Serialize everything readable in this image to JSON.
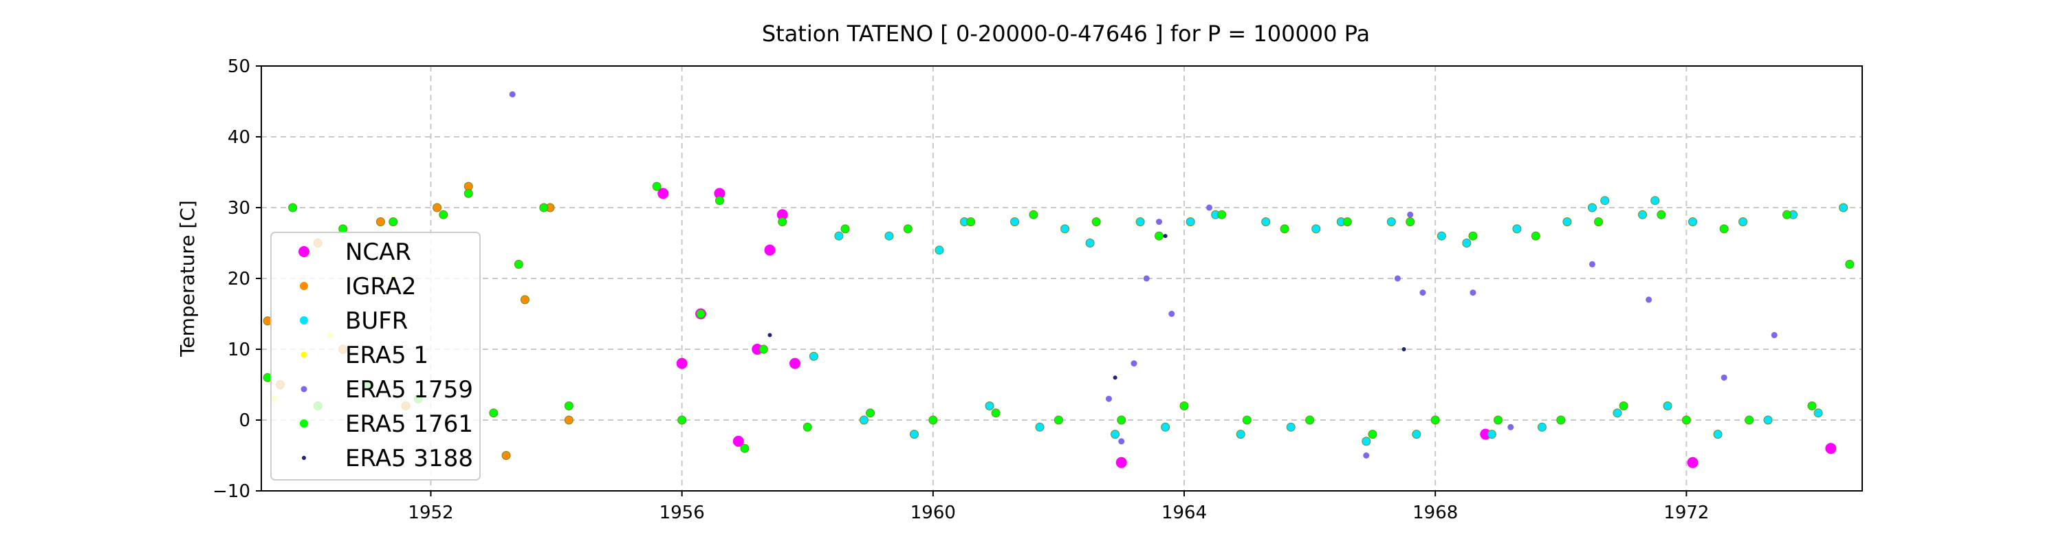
{
  "chart_data": {
    "type": "scatter",
    "title": "Station  TATENO [ 0-20000-0-47646 ]  for P = 100000 Pa",
    "xlabel": "",
    "ylabel": "Temperature [C]",
    "xlim": [
      1949.3,
      1974.8
    ],
    "ylim": [
      -10,
      50
    ],
    "x_ticks": [
      1952,
      1956,
      1960,
      1964,
      1968,
      1972
    ],
    "x_tick_labels": [
      "1952",
      "1956",
      "1960",
      "1964",
      "1968",
      "1972"
    ],
    "y_ticks": [
      -10,
      0,
      10,
      20,
      30,
      40,
      50
    ],
    "y_tick_labels": [
      "−10",
      "0",
      "10",
      "20",
      "30",
      "40",
      "50"
    ],
    "grid": true,
    "legend_position": "center-left",
    "series": [
      {
        "name": "NCAR",
        "color": "#ff00ff",
        "marker_size": "large",
        "x": [
          1955.7,
          1956.0,
          1956.3,
          1956.6,
          1956.9,
          1957.2,
          1957.4,
          1957.6,
          1957.8,
          1963.0,
          1968.8,
          1972.1,
          1974.3
        ],
        "y": [
          32,
          8,
          15,
          32,
          -3,
          10,
          24,
          29,
          8,
          -6,
          -2,
          -6,
          -4
        ]
      },
      {
        "name": "IGRA2",
        "color": "#ff8c00",
        "marker_size": "medium",
        "x": [
          1949.4,
          1949.6,
          1950.2,
          1950.6,
          1951.2,
          1951.6,
          1952.1,
          1952.6,
          1953.2,
          1953.5,
          1953.9,
          1954.2
        ],
        "y": [
          14,
          5,
          25,
          10,
          28,
          2,
          30,
          33,
          -5,
          17,
          30,
          0
        ]
      },
      {
        "name": "BUFR",
        "color": "#00e5ff",
        "marker_size": "medium",
        "x": [
          1958.1,
          1958.5,
          1958.9,
          1959.3,
          1959.7,
          1960.1,
          1960.5,
          1960.9,
          1961.3,
          1961.7,
          1962.1,
          1962.5,
          1962.9,
          1963.3,
          1963.7,
          1964.1,
          1964.5,
          1964.9,
          1965.3,
          1965.7,
          1966.1,
          1966.5,
          1966.9,
          1967.3,
          1967.7,
          1968.1,
          1968.5,
          1968.9,
          1969.3,
          1969.7,
          1970.1,
          1970.5,
          1970.7,
          1970.9,
          1971.3,
          1971.5,
          1971.7,
          1972.1,
          1972.5,
          1972.9,
          1973.3,
          1973.7,
          1974.1,
          1974.5
        ],
        "y": [
          9,
          26,
          0,
          26,
          -2,
          24,
          28,
          2,
          28,
          -1,
          27,
          25,
          -2,
          28,
          -1,
          28,
          29,
          -2,
          28,
          -1,
          27,
          28,
          -3,
          28,
          -2,
          26,
          25,
          -2,
          27,
          -1,
          28,
          30,
          31,
          1,
          29,
          31,
          2,
          28,
          -2,
          28,
          0,
          29,
          1,
          30
        ]
      },
      {
        "name": "ERA5 1",
        "color": "#ffff00",
        "marker_size": "small",
        "x": [
          1949.5,
          1950.4,
          1951.4
        ],
        "y": [
          3,
          12,
          20
        ]
      },
      {
        "name": "ERA5 1759",
        "color": "#7b68ee",
        "marker_size": "small",
        "x": [
          1953.3,
          1962.8,
          1963.0,
          1963.2,
          1963.4,
          1963.6,
          1963.8,
          1964.4,
          1966.9,
          1967.4,
          1967.6,
          1967.8,
          1968.6,
          1969.2,
          1970.5,
          1971.4,
          1972.6,
          1973.4
        ],
        "y": [
          46,
          3,
          -3,
          8,
          20,
          28,
          15,
          30,
          -5,
          20,
          29,
          18,
          18,
          -1,
          22,
          17,
          6,
          12
        ]
      },
      {
        "name": "ERA5 1761",
        "color": "#00ff00",
        "marker_size": "medium",
        "x": [
          1949.4,
          1949.8,
          1950.2,
          1950.6,
          1951.0,
          1951.4,
          1951.8,
          1952.2,
          1952.6,
          1953.0,
          1953.4,
          1953.8,
          1954.2,
          1955.6,
          1956.0,
          1956.3,
          1956.6,
          1957.0,
          1957.3,
          1957.6,
          1958.0,
          1958.6,
          1959.0,
          1959.6,
          1960.0,
          1960.6,
          1961.0,
          1961.6,
          1962.0,
          1962.6,
          1963.0,
          1963.6,
          1964.0,
          1964.6,
          1965.0,
          1965.6,
          1966.0,
          1966.6,
          1967.0,
          1967.6,
          1968.0,
          1968.6,
          1969.0,
          1969.6,
          1970.0,
          1970.6,
          1971.0,
          1971.6,
          1972.0,
          1972.6,
          1973.0,
          1973.6,
          1974.0,
          1974.6
        ],
        "y": [
          6,
          30,
          2,
          27,
          5,
          28,
          3,
          29,
          32,
          1,
          22,
          30,
          2,
          33,
          0,
          15,
          31,
          -4,
          10,
          28,
          -1,
          27,
          1,
          27,
          0,
          28,
          1,
          29,
          0,
          28,
          0,
          26,
          2,
          29,
          0,
          27,
          0,
          28,
          -2,
          28,
          0,
          26,
          0,
          26,
          0,
          28,
          2,
          29,
          0,
          27,
          0,
          29,
          2,
          22
        ]
      },
      {
        "name": "ERA5 3188",
        "color": "#1a237e",
        "marker_size": "tiny",
        "x": [
          1957.4,
          1962.9,
          1963.7,
          1967.5
        ],
        "y": [
          12,
          6,
          26,
          10
        ]
      }
    ]
  }
}
